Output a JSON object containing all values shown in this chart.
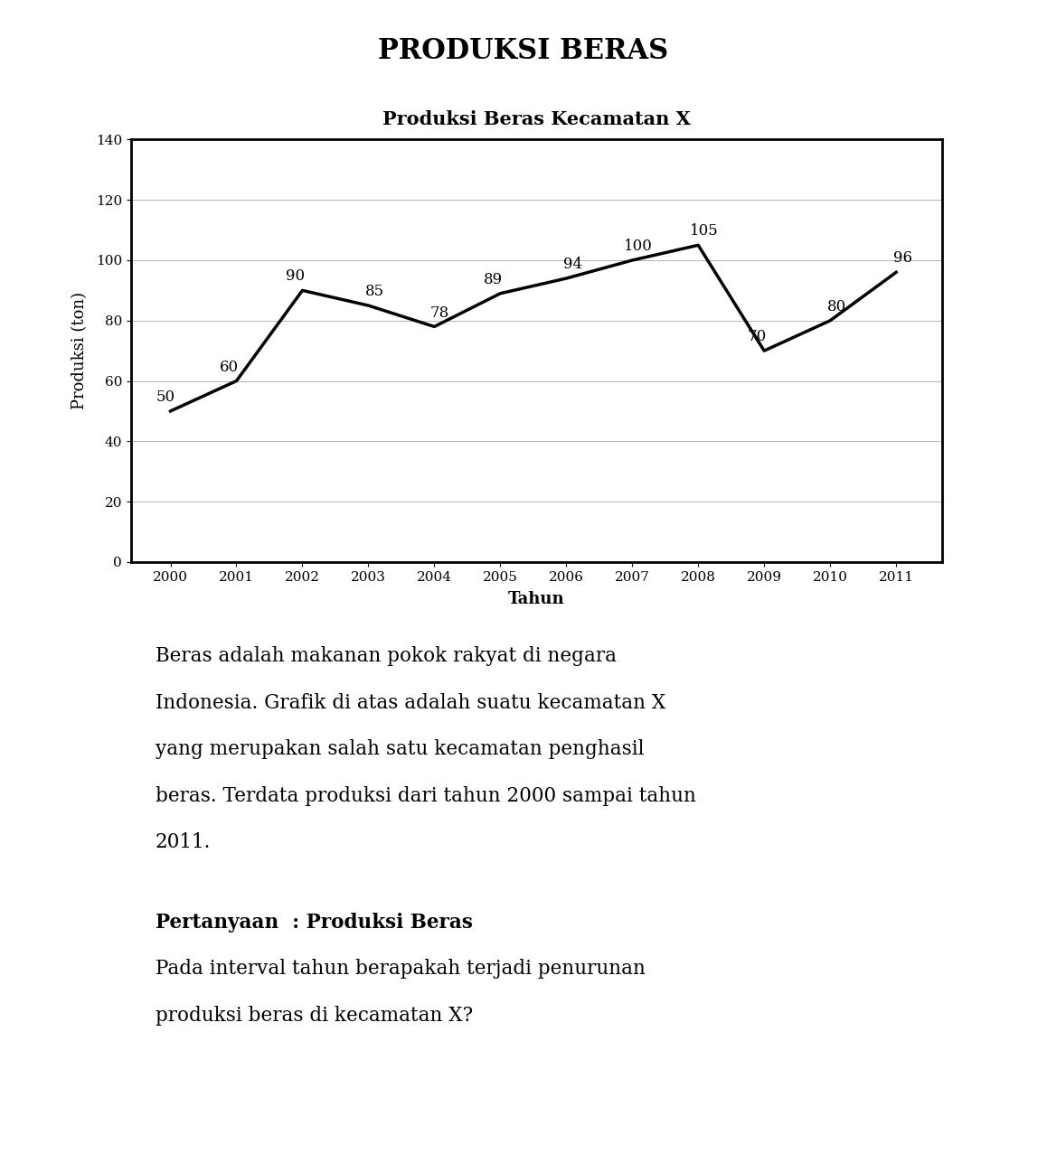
{
  "main_title": "PRODUKSI BERAS",
  "chart_title": "Produksi Beras Kecamatan X",
  "years": [
    2000,
    2001,
    2002,
    2003,
    2004,
    2005,
    2006,
    2007,
    2008,
    2009,
    2010,
    2011
  ],
  "values": [
    50,
    60,
    90,
    85,
    78,
    89,
    94,
    100,
    105,
    70,
    80,
    96
  ],
  "xlabel": "Tahun",
  "ylabel": "Produksi (ton)",
  "ylim": [
    0,
    140
  ],
  "yticks": [
    0,
    20,
    40,
    60,
    80,
    100,
    120,
    140
  ],
  "line_color": "#000000",
  "line_width": 2.5,
  "background_color": "#ffffff",
  "grid_color": "#aaaaaa",
  "para_line1": "Beras adalah makanan pokok rakyat di negara",
  "para_line2": "Indonesia. Grafik di atas adalah suatu kecamatan X",
  "para_line3": "yang merupakan salah satu kecamatan penghasil",
  "para_line4": "beras. Terdata produksi dari tahun 2000 sampai tahun",
  "para_line5": "2011.",
  "question_label": "Pertanyaan  : Produksi Beras",
  "question_line1": "Pada interval tahun berapakah terjadi penurunan",
  "question_line2": "produksi beras di kecamatan X?"
}
